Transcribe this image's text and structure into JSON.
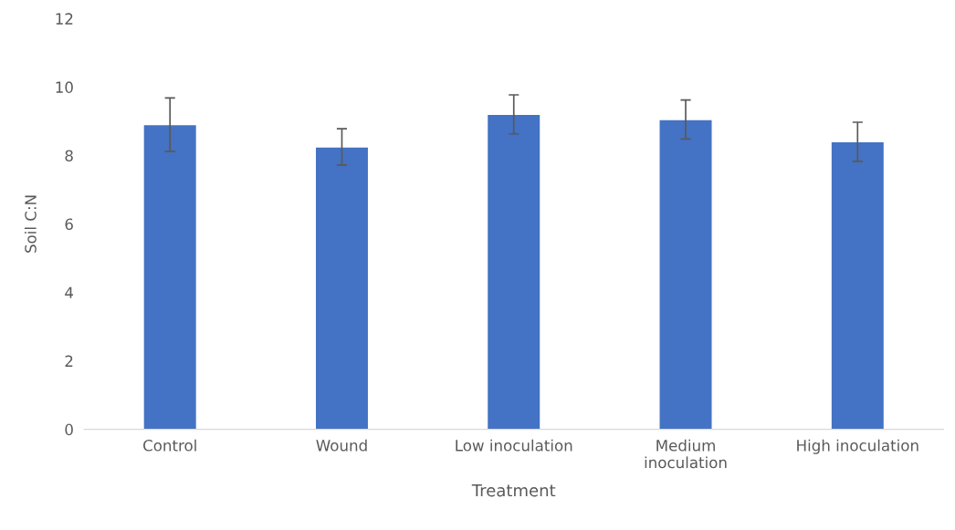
{
  "chart_data": {
    "type": "bar",
    "xlabel": "Treatment",
    "ylabel": "Soil C:N",
    "categories": [
      "Control",
      "Wound",
      "Low inoculation",
      "Medium\ninoculation",
      "High inoculation"
    ],
    "values": [
      8.9,
      8.25,
      9.2,
      9.05,
      8.4
    ],
    "errors": [
      0.78,
      0.53,
      0.57,
      0.57,
      0.57
    ],
    "color": "#4472c4",
    "ylim": [
      0,
      12
    ],
    "yticks": [
      0,
      2,
      4,
      6,
      8,
      10,
      12
    ],
    "grid": false,
    "legend": false
  }
}
